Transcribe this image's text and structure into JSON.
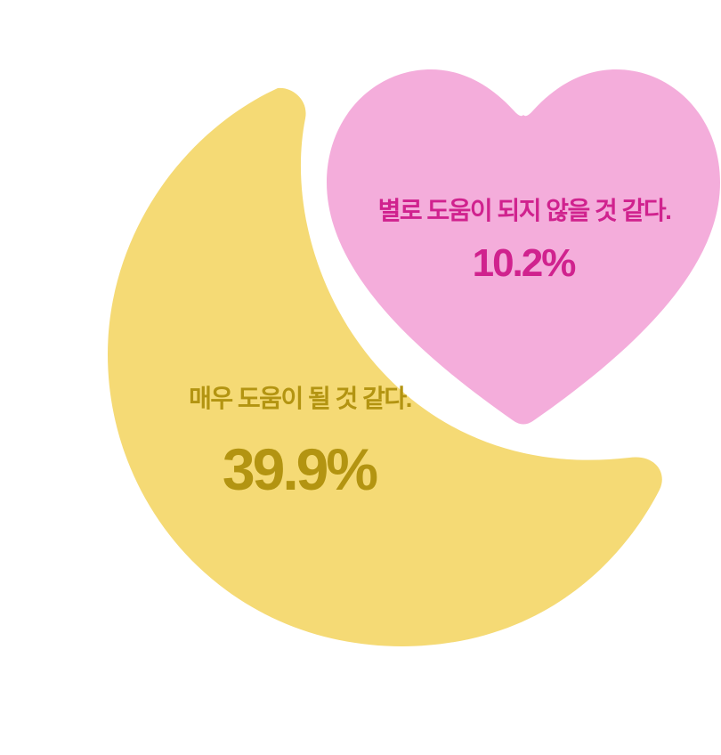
{
  "chart_data": {
    "type": "pie",
    "title": "",
    "slices": [
      {
        "shape": "moon-icon",
        "label": "매우 도움이 될 것 같다.",
        "value": 39.9,
        "value_text": "39.9%",
        "fill_color": "#F5DA75",
        "text_color": "#B39411"
      },
      {
        "shape": "heart-icon",
        "label": "별로 도움이 되지 않을 것 같다.",
        "value": 10.2,
        "value_text": "10.2%",
        "fill_color": "#F4ADDB",
        "text_color": "#D0228E"
      }
    ]
  }
}
